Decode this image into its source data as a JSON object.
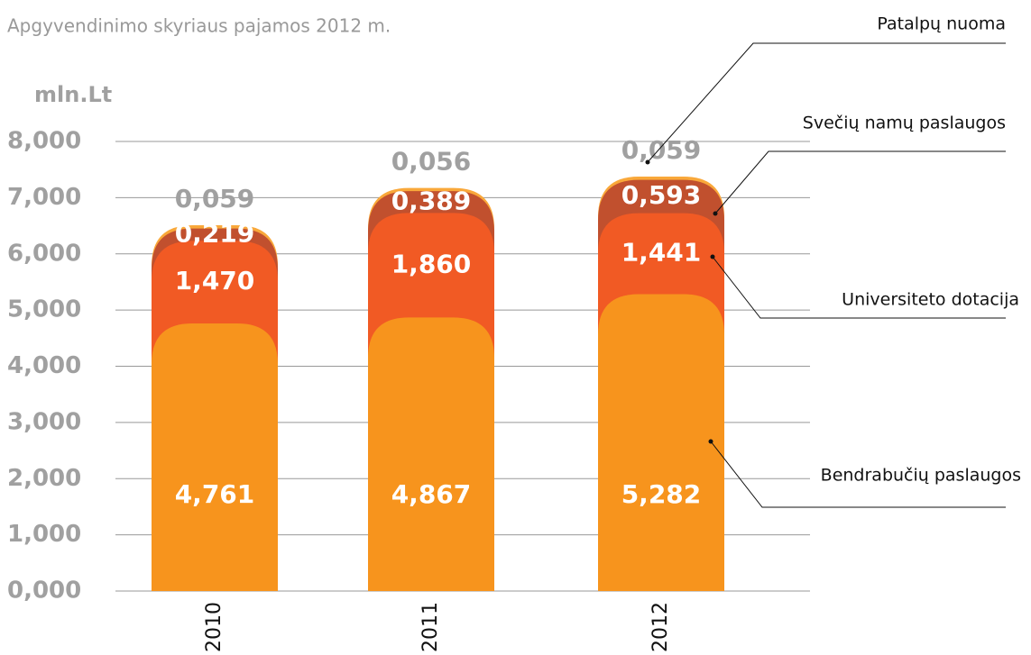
{
  "chart_data": {
    "type": "bar",
    "stacked": true,
    "title": "Apgyvendinimo skyriaus pajamos 2012 m.",
    "y_label": "mln.Lt",
    "categories": [
      "2010",
      "2011",
      "2012"
    ],
    "series": [
      {
        "name": "Bendrabučių paslaugos",
        "color": "#f7941d",
        "values": [
          4.761,
          4.867,
          5.282
        ],
        "value_labels": [
          "4,761",
          "4,867",
          "5,282"
        ]
      },
      {
        "name": "Universiteto dotacija",
        "color": "#f15a24",
        "values": [
          1.47,
          1.86,
          1.441
        ],
        "value_labels": [
          "1,470",
          "1,860",
          "1,441"
        ]
      },
      {
        "name": "Svečių namų paslaugos",
        "color": "#c1502e",
        "values": [
          0.219,
          0.389,
          0.593
        ],
        "value_labels": [
          "0,219",
          "0,389",
          "0,593"
        ]
      },
      {
        "name": "Patalpų nuoma",
        "color": "#f9a83a",
        "values": [
          0.059,
          0.056,
          0.059
        ],
        "value_labels": [
          "0,059",
          "0,056",
          "0,059"
        ]
      }
    ],
    "ylim": [
      0,
      8
    ],
    "yticks": [
      {
        "value": 0,
        "label": "0,000"
      },
      {
        "value": 1,
        "label": "1,000"
      },
      {
        "value": 2,
        "label": "2,000"
      },
      {
        "value": 3,
        "label": "3,000"
      },
      {
        "value": 4,
        "label": "4,000"
      },
      {
        "value": 5,
        "label": "5,000"
      },
      {
        "value": 6,
        "label": "6,000"
      },
      {
        "value": 7,
        "label": "7,000"
      },
      {
        "value": 8,
        "label": "8,000"
      }
    ],
    "grid": true
  }
}
